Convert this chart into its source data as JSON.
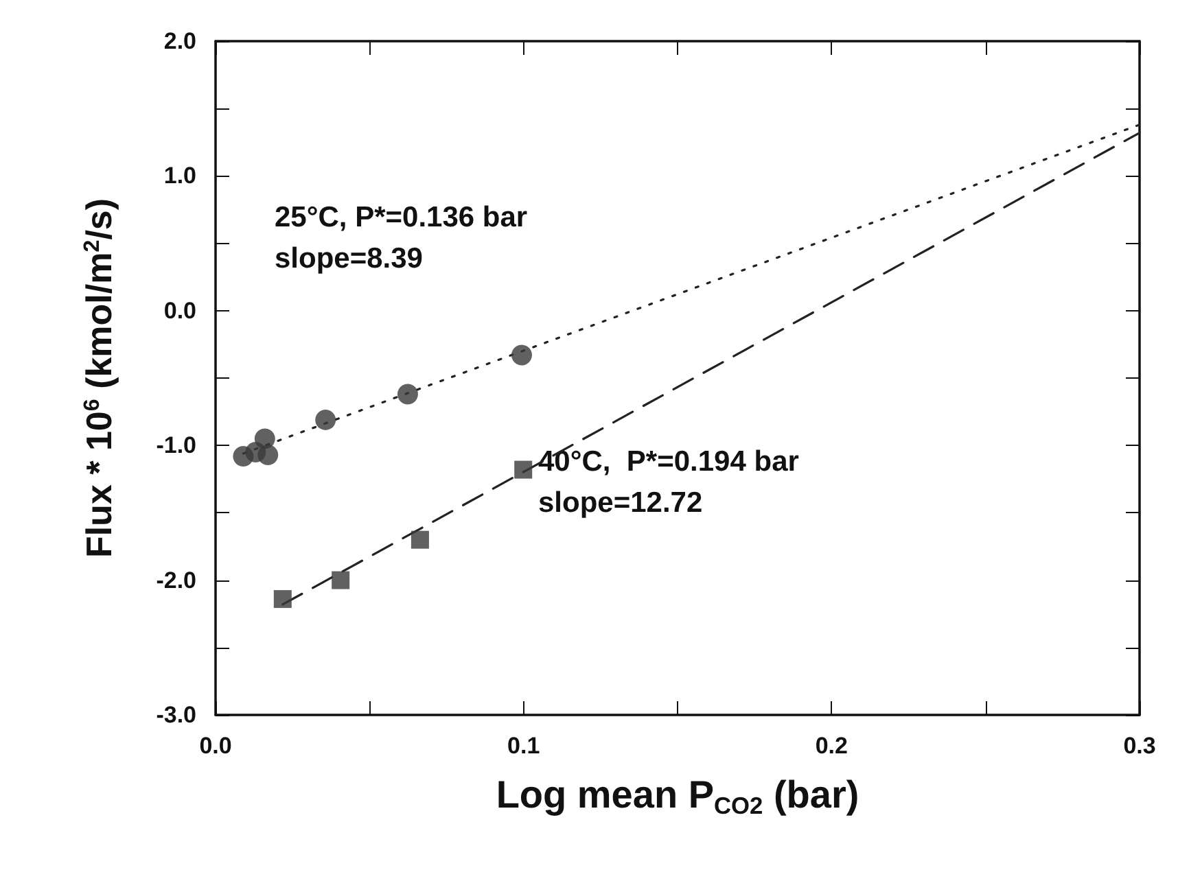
{
  "chart_data": {
    "type": "scatter",
    "xlabel": "Log mean P$_{CO2}$ (bar)",
    "ylabel": "Flux * 10$^{6}$ (kmol/m$^{2}$/s)",
    "annotations": [
      "25°C, P*=0.136 bar",
      "slope=8.39",
      "40°C,  P*=0.194 bar",
      "slope=12.72"
    ],
    "series": [
      {
        "marker": "circle",
        "color": "#3a3a3a",
        "x": [
          0.009,
          0.013,
          0.016,
          0.017,
          0.0357,
          0.0624,
          0.0994
        ],
        "values": [
          -1.08,
          -1.05,
          -0.95,
          -1.07,
          -0.81,
          -0.62,
          -0.33
        ]
      },
      {
        "marker": "square",
        "color": "#3a3a3a",
        "x": [
          0.0218,
          0.0406,
          0.0664,
          0.0999
        ],
        "values": [
          -2.14,
          -2.0,
          -1.7,
          -1.18
        ]
      },
      {
        "type": "line",
        "marker": "none",
        "line_style": "dotted",
        "color": "#222222",
        "x": [
          0.009,
          0.3
        ],
        "values": [
          -1.06,
          1.38
        ]
      },
      {
        "type": "line",
        "marker": "none",
        "line_style": "dashed",
        "color": "#222222",
        "x": [
          0.0218,
          0.3
        ],
        "values": [
          -2.18,
          1.32
        ]
      }
    ],
    "xlim": [
      0,
      0.3
    ],
    "xticks": [
      {
        "value": 0,
        "label": "0.0"
      },
      {
        "value": 0.05,
        "label": null
      },
      0.1,
      {
        "value": 0.15,
        "label": null
      },
      0.2,
      {
        "value": 0.25,
        "label": null
      },
      0.3
    ],
    "ylim": [
      -3,
      2
    ],
    "yticks": [
      {
        "value": -3,
        "label": "-3.0"
      },
      {
        "value": -2.5,
        "label": null
      },
      {
        "value": -2,
        "label": "-2.0"
      },
      {
        "value": -1.5,
        "label": null
      },
      {
        "value": -1,
        "label": "-1.0"
      },
      {
        "value": -0.5,
        "label": null
      },
      {
        "value": 0,
        "label": "0.0"
      },
      {
        "value": 0.5,
        "label": null
      },
      {
        "value": 1,
        "label": "1.0"
      },
      {
        "value": 1.5,
        "label": null
      },
      {
        "value": 2,
        "label": "2.0"
      }
    ],
    "grid": false
  }
}
